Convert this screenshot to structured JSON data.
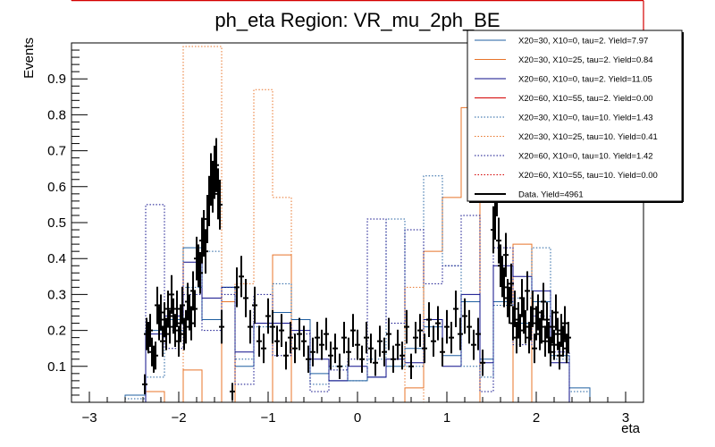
{
  "chart_data": {
    "type": "line",
    "title": "ph_eta Region: VR_mu_2ph_BE",
    "xlabel": "eta",
    "ylabel": "Events",
    "xlim": [
      -3.2,
      3.2
    ],
    "ylim": [
      0,
      1.0
    ],
    "x_ticks": [
      -3,
      -2,
      -1,
      0,
      1,
      2,
      3
    ],
    "x_tick_labels": [
      "−3",
      "−2",
      "−1",
      "0",
      "1",
      "2",
      "3"
    ],
    "y_ticks": [
      0.1,
      0.2,
      0.3,
      0.4,
      0.5,
      0.6,
      0.7,
      0.8,
      0.9
    ],
    "y_tick_labels": [
      "0.1",
      "0.2",
      "0.3",
      "0.4",
      "0.5",
      "0.6",
      "0.7",
      "0.8",
      "0.9"
    ],
    "grid": false,
    "legend_position": "top-right",
    "bin_edges": [
      -2.6,
      -2.37,
      -2.16,
      -1.95,
      -1.74,
      -1.52,
      -1.37,
      -1.16,
      -0.95,
      -0.74,
      -0.53,
      -0.32,
      -0.11,
      0.11,
      0.32,
      0.53,
      0.74,
      0.95,
      1.16,
      1.37,
      1.52,
      1.74,
      1.95,
      2.16,
      2.37,
      2.6
    ],
    "series": [
      {
        "name": "X20=30, X10=0, tau=2. Yield=7.97",
        "color": "#1f5fa0",
        "dash": "solid",
        "values": [
          0.02,
          0.2,
          0.23,
          0.43,
          0.23,
          0.32,
          0.1,
          0.22,
          0.25,
          0.23,
          0.08,
          0.06,
          0.06,
          0.07,
          0.1,
          0.15,
          0.21,
          0.13,
          0.28,
          0.12,
          0.28,
          0.22,
          0.28,
          0.13,
          0.04
        ]
      },
      {
        "name": "X20=30, X10=25, tau=2. Yield=0.84",
        "color": "#e8742a",
        "dash": "solid",
        "values": [
          0,
          0.03,
          0,
          0.09,
          0,
          0.28,
          0,
          0,
          0.41,
          0,
          0,
          0,
          0,
          0,
          0,
          0.04,
          0.42,
          0.57,
          0.82,
          0,
          0,
          0.44,
          0,
          0,
          0
        ]
      },
      {
        "name": "X20=60, X10=0, tau=2. Yield=11.05",
        "color": "#0d0d8a",
        "dash": "solid",
        "values": [
          0,
          0.19,
          0.24,
          0.39,
          0.29,
          0.32,
          0.14,
          0.22,
          0.22,
          0.2,
          0.12,
          0.06,
          0.1,
          0.07,
          0.12,
          0.11,
          0.23,
          0.1,
          0.3,
          0.11,
          0.38,
          0.35,
          0.31,
          0.11,
          0
        ]
      },
      {
        "name": "X20=60, X10=55, tau=2. Yield=0.00",
        "color": "#d40000",
        "dash": "solid",
        "values": [
          0,
          0,
          0,
          0,
          0,
          0,
          0,
          0,
          0,
          0,
          0,
          0,
          0,
          0,
          0,
          0,
          0,
          0,
          0,
          0,
          0,
          0,
          0,
          0,
          0
        ]
      },
      {
        "name": "X20=30, X10=0, tau=10. Yield=1.43",
        "color": "#1f5fa0",
        "dash": "dotted",
        "values": [
          0.01,
          0.07,
          0.2,
          0.32,
          0.42,
          0.32,
          0.12,
          0.21,
          0.33,
          0.23,
          0.05,
          0.1,
          0.06,
          0.12,
          0.51,
          0.1,
          0.63,
          0.38,
          0.1,
          0.07,
          0.27,
          0.29,
          0.43,
          0.12,
          0.03
        ]
      },
      {
        "name": "X20=30, X10=25, tau=10. Yield=0.41",
        "color": "#e8742a",
        "dash": "dotted",
        "values": [
          0,
          0,
          0,
          0.99,
          0.99,
          0,
          0.33,
          0.87,
          0.57,
          0,
          0,
          0,
          0,
          0,
          0,
          0.32,
          0,
          0,
          0,
          0,
          0,
          0,
          0,
          0,
          0
        ]
      },
      {
        "name": "X20=60, X10=0, tau=10. Yield=1.42",
        "color": "#0d0d8a",
        "dash": "dotted",
        "values": [
          0,
          0.55,
          0.15,
          0.3,
          0.2,
          0.3,
          0.05,
          0.3,
          0.13,
          0.19,
          0.03,
          0.09,
          0.12,
          0.51,
          0.22,
          0.48,
          0.33,
          0.38,
          0.52,
          0.03,
          0.43,
          0.16,
          0.24,
          0.14,
          0
        ]
      },
      {
        "name": "X20=60, X10=55, tau=10. Yield=0.00",
        "color": "#d40000",
        "dash": "dotted",
        "values": [
          0,
          0,
          0,
          0,
          0,
          0,
          0,
          0,
          0,
          0,
          0,
          0,
          0,
          0,
          0,
          0,
          0,
          0,
          0,
          0,
          0,
          0,
          0,
          0,
          0
        ]
      }
    ],
    "data": {
      "name": "Data. Yield=4961",
      "color": "#000000",
      "x": [
        -2.38,
        -2.36,
        -2.34,
        -2.32,
        -2.3,
        -2.28,
        -2.26,
        -2.24,
        -2.22,
        -2.2,
        -2.18,
        -2.16,
        -2.14,
        -2.12,
        -2.1,
        -2.08,
        -2.06,
        -2.04,
        -2.02,
        -2.0,
        -1.98,
        -1.96,
        -1.94,
        -1.92,
        -1.9,
        -1.88,
        -1.86,
        -1.84,
        -1.82,
        -1.8,
        -1.78,
        -1.76,
        -1.74,
        -1.72,
        -1.7,
        -1.68,
        -1.66,
        -1.64,
        -1.62,
        -1.6,
        -1.58,
        -1.56,
        -1.54,
        -1.52,
        -1.4,
        -1.35,
        -1.3,
        -1.25,
        -1.2,
        -1.15,
        -1.1,
        -1.05,
        -1.0,
        -0.95,
        -0.9,
        -0.85,
        -0.8,
        -0.75,
        -0.7,
        -0.65,
        -0.6,
        -0.55,
        -0.5,
        -0.45,
        -0.4,
        -0.35,
        -0.3,
        -0.25,
        -0.2,
        -0.15,
        -0.1,
        -0.05,
        0.0,
        0.05,
        0.1,
        0.15,
        0.2,
        0.25,
        0.3,
        0.35,
        0.4,
        0.45,
        0.5,
        0.55,
        0.6,
        0.65,
        0.7,
        0.75,
        0.8,
        0.85,
        0.9,
        0.95,
        1.0,
        1.05,
        1.1,
        1.15,
        1.2,
        1.25,
        1.3,
        1.35,
        1.4,
        1.52,
        1.54,
        1.56,
        1.58,
        1.6,
        1.62,
        1.64,
        1.66,
        1.68,
        1.7,
        1.72,
        1.74,
        1.76,
        1.78,
        1.8,
        1.82,
        1.84,
        1.86,
        1.88,
        1.9,
        1.92,
        1.94,
        1.96,
        1.98,
        2.0,
        2.02,
        2.04,
        2.06,
        2.08,
        2.1,
        2.12,
        2.14,
        2.16,
        2.18,
        2.2,
        2.22,
        2.24,
        2.26,
        2.28,
        2.3,
        2.32,
        2.34,
        2.36
      ],
      "y": [
        0.05,
        0.19,
        0.18,
        0.2,
        0.14,
        0.12,
        0.13,
        0.27,
        0.22,
        0.25,
        0.17,
        0.23,
        0.19,
        0.26,
        0.21,
        0.3,
        0.24,
        0.2,
        0.26,
        0.17,
        0.22,
        0.27,
        0.19,
        0.21,
        0.28,
        0.25,
        0.22,
        0.31,
        0.26,
        0.4,
        0.38,
        0.36,
        0.45,
        0.47,
        0.42,
        0.51,
        0.56,
        0.62,
        0.6,
        0.64,
        0.66,
        0.58,
        0.55,
        0.21,
        0.03,
        0.32,
        0.35,
        0.29,
        0.21,
        0.27,
        0.17,
        0.15,
        0.24,
        0.21,
        0.17,
        0.2,
        0.13,
        0.18,
        0.15,
        0.19,
        0.17,
        0.12,
        0.14,
        0.18,
        0.16,
        0.19,
        0.13,
        0.15,
        0.1,
        0.18,
        0.14,
        0.2,
        0.16,
        0.12,
        0.18,
        0.15,
        0.11,
        0.17,
        0.14,
        0.19,
        0.12,
        0.16,
        0.13,
        0.21,
        0.1,
        0.18,
        0.2,
        0.15,
        0.23,
        0.17,
        0.22,
        0.14,
        0.21,
        0.18,
        0.26,
        0.19,
        0.24,
        0.21,
        0.16,
        0.19,
        0.11,
        0.48,
        0.52,
        0.59,
        0.45,
        0.38,
        0.35,
        0.32,
        0.41,
        0.29,
        0.27,
        0.33,
        0.22,
        0.26,
        0.18,
        0.23,
        0.2,
        0.29,
        0.24,
        0.21,
        0.31,
        0.18,
        0.22,
        0.26,
        0.15,
        0.22,
        0.25,
        0.19,
        0.21,
        0.28,
        0.17,
        0.23,
        0.18,
        0.14,
        0.21,
        0.16,
        0.25,
        0.19,
        0.13,
        0.2,
        0.17,
        0.22,
        0.15,
        0.18
      ]
    }
  }
}
